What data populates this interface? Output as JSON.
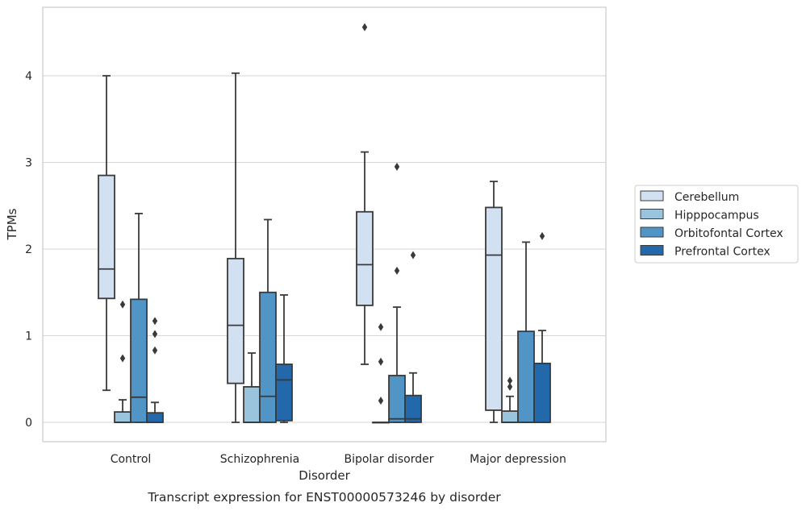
{
  "chart_data": {
    "type": "box",
    "caption": "Transcript expression for ENST00000573246 by disorder",
    "xlabel": "Disorder",
    "ylabel": "TPMs",
    "ylim": [
      -0.22,
      4.8
    ],
    "yticks": [
      0,
      1,
      2,
      3,
      4
    ],
    "grid": "horizontal",
    "legend_position": "right",
    "categories": [
      "Control",
      "Schizophrenia",
      "Bipolar disorder",
      "Major depression"
    ],
    "series": [
      {
        "name": "Cerebellum",
        "color": "#d2e1f1",
        "boxes": [
          {
            "whislo": 0.37,
            "q1": 1.43,
            "med": 1.77,
            "q3": 2.85,
            "whishi": 4.0,
            "fliers": []
          },
          {
            "whislo": 0.0,
            "q1": 0.45,
            "med": 1.12,
            "q3": 1.89,
            "whishi": 4.03,
            "fliers": []
          },
          {
            "whislo": 0.67,
            "q1": 1.35,
            "med": 1.82,
            "q3": 2.43,
            "whishi": 3.12,
            "fliers": [
              4.56
            ]
          },
          {
            "whislo": 0.0,
            "q1": 0.14,
            "med": 1.93,
            "q3": 2.48,
            "whishi": 2.78,
            "fliers": []
          }
        ]
      },
      {
        "name": "Hipppocampus",
        "color": "#9ac4de",
        "boxes": [
          {
            "whislo": 0.0,
            "q1": 0.0,
            "med": 0.0,
            "q3": 0.12,
            "whishi": 0.26,
            "fliers": [
              0.74,
              1.36
            ]
          },
          {
            "whislo": 0.0,
            "q1": 0.0,
            "med": 0.0,
            "q3": 0.41,
            "whishi": 0.8,
            "fliers": []
          },
          {
            "whislo": 0.0,
            "q1": 0.0,
            "med": 0.0,
            "q3": 0.0,
            "whishi": 0.0,
            "fliers": [
              0.25,
              0.7,
              1.1
            ]
          },
          {
            "whislo": 0.0,
            "q1": 0.0,
            "med": 0.0,
            "q3": 0.13,
            "whishi": 0.3,
            "fliers": [
              0.41,
              0.48
            ]
          }
        ]
      },
      {
        "name": "Orbitofontal Cortex",
        "color": "#5095c5",
        "boxes": [
          {
            "whislo": 0.0,
            "q1": 0.0,
            "med": 0.29,
            "q3": 1.42,
            "whishi": 2.41,
            "fliers": []
          },
          {
            "whislo": 0.0,
            "q1": 0.0,
            "med": 0.3,
            "q3": 1.5,
            "whishi": 2.34,
            "fliers": []
          },
          {
            "whislo": 0.0,
            "q1": 0.0,
            "med": 0.04,
            "q3": 0.54,
            "whishi": 1.33,
            "fliers": [
              1.75,
              2.95
            ]
          },
          {
            "whislo": 0.0,
            "q1": 0.0,
            "med": 0.0,
            "q3": 1.05,
            "whishi": 2.08,
            "fliers": []
          }
        ]
      },
      {
        "name": "Prefrontal Cortex",
        "color": "#2268ab",
        "boxes": [
          {
            "whislo": 0.0,
            "q1": 0.0,
            "med": 0.0,
            "q3": 0.11,
            "whishi": 0.23,
            "fliers": [
              0.83,
              1.02,
              1.17
            ]
          },
          {
            "whislo": 0.0,
            "q1": 0.02,
            "med": 0.49,
            "q3": 0.67,
            "whishi": 1.47,
            "fliers": []
          },
          {
            "whislo": 0.0,
            "q1": 0.0,
            "med": 0.04,
            "q3": 0.31,
            "whishi": 0.57,
            "fliers": [
              1.93
            ]
          },
          {
            "whislo": 0.0,
            "q1": 0.0,
            "med": 0.0,
            "q3": 0.68,
            "whishi": 1.06,
            "fliers": [
              2.15
            ]
          }
        ]
      }
    ]
  }
}
